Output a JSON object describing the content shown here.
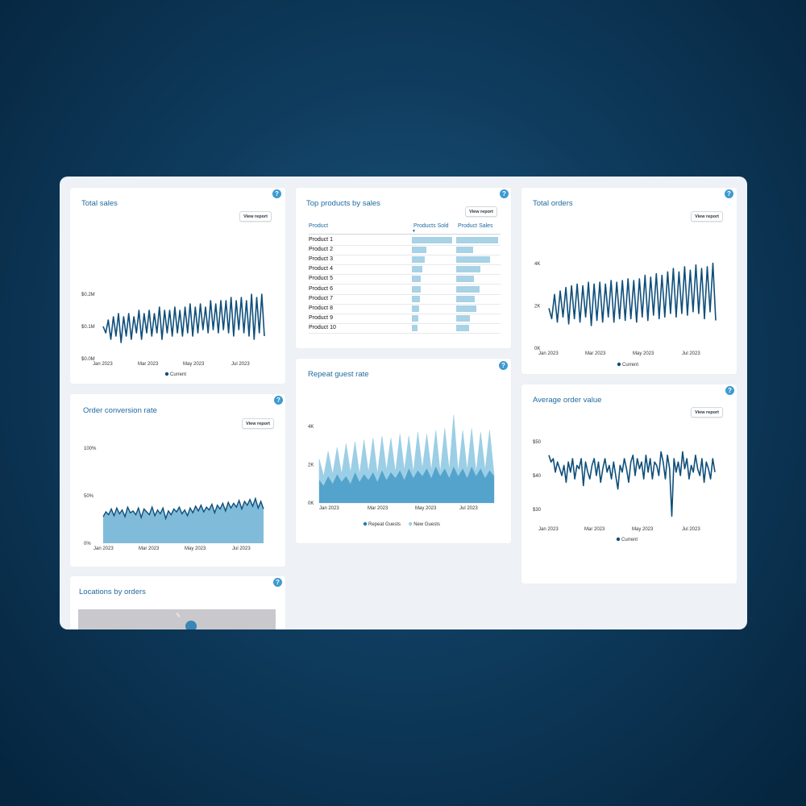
{
  "colors": {
    "accent": "#1f6aa0",
    "line": "#0f4f7a",
    "area": "#80bcd9",
    "bar": "#a8d2e6",
    "repeat": "#1a7fb8",
    "new": "#9ccfe6"
  },
  "common": {
    "view_report": "View report",
    "help": "?"
  },
  "total_sales": {
    "title": "Total sales",
    "legend": "Current",
    "chart_data": {
      "type": "line",
      "x_ticks": [
        "Jan 2023",
        "Mar 2023",
        "May 2023",
        "Jul 2023"
      ],
      "y_ticks": [
        "$0.0M",
        "$0.1M",
        "$0.2M"
      ],
      "ylim": [
        0,
        0.2
      ],
      "series": [
        {
          "name": "Current",
          "values": [
            0.1,
            0.08,
            0.12,
            0.06,
            0.13,
            0.07,
            0.14,
            0.05,
            0.13,
            0.07,
            0.14,
            0.06,
            0.13,
            0.08,
            0.15,
            0.06,
            0.14,
            0.08,
            0.15,
            0.07,
            0.14,
            0.08,
            0.16,
            0.06,
            0.15,
            0.08,
            0.15,
            0.07,
            0.16,
            0.08,
            0.15,
            0.07,
            0.16,
            0.08,
            0.17,
            0.07,
            0.16,
            0.08,
            0.17,
            0.09,
            0.16,
            0.08,
            0.18,
            0.09,
            0.17,
            0.08,
            0.18,
            0.09,
            0.18,
            0.08,
            0.19,
            0.07,
            0.18,
            0.09,
            0.19,
            0.08,
            0.18,
            0.07,
            0.2,
            0.06,
            0.19,
            0.08,
            0.2,
            0.07
          ]
        }
      ]
    }
  },
  "top_products": {
    "title": "Top products by sales",
    "col_product": "Product",
    "col_sold": "Products Sold",
    "col_sales": "Product Sales",
    "sort_indicator": "▼",
    "rows": [
      {
        "name": "Product 1",
        "sold": 1.0,
        "sales": 1.0
      },
      {
        "name": "Product 2",
        "sold": 0.35,
        "sales": 0.4
      },
      {
        "name": "Product 3",
        "sold": 0.32,
        "sales": 0.8
      },
      {
        "name": "Product 4",
        "sold": 0.25,
        "sales": 0.58
      },
      {
        "name": "Product 5",
        "sold": 0.22,
        "sales": 0.42
      },
      {
        "name": "Product 6",
        "sold": 0.22,
        "sales": 0.56
      },
      {
        "name": "Product 7",
        "sold": 0.2,
        "sales": 0.45
      },
      {
        "name": "Product 8",
        "sold": 0.18,
        "sales": 0.48
      },
      {
        "name": "Product 9",
        "sold": 0.16,
        "sales": 0.33
      },
      {
        "name": "Product 10",
        "sold": 0.13,
        "sales": 0.31
      }
    ]
  },
  "total_orders": {
    "title": "Total orders",
    "legend": "Current",
    "chart_data": {
      "type": "line",
      "x_ticks": [
        "Jan 2023",
        "Mar 2023",
        "May 2023",
        "Jul 2023"
      ],
      "y_ticks": [
        "0K",
        "2K",
        "4K"
      ],
      "ylim": [
        0,
        4000
      ],
      "series": [
        {
          "name": "Current",
          "values": [
            2300,
            1700,
            3100,
            1500,
            3300,
            1800,
            3500,
            1400,
            3600,
            1700,
            3700,
            1500,
            3600,
            1800,
            3800,
            1300,
            3700,
            1600,
            3800,
            1500,
            3700,
            1800,
            3900,
            1500,
            3800,
            1700,
            3900,
            1600,
            4000,
            1700,
            3900,
            1500,
            4000,
            1800,
            4200,
            1600,
            4100,
            1900,
            4300,
            1700,
            4200,
            1800,
            4400,
            2000,
            4600,
            1800,
            4400,
            2000,
            4700,
            1900,
            4500,
            2100,
            4800,
            2000,
            4600,
            1700,
            4700,
            2100,
            4900,
            1600
          ]
        }
      ]
    }
  },
  "order_conversion": {
    "title": "Order conversion rate",
    "chart_data": {
      "type": "area",
      "x_ticks": [
        "Jan 2023",
        "Mar 2023",
        "May 2023",
        "Jul 2023"
      ],
      "y_ticks": [
        "0%",
        "50%",
        "100%"
      ],
      "ylim": [
        0,
        100
      ],
      "series": [
        {
          "name": "",
          "values": [
            28,
            33,
            30,
            36,
            29,
            37,
            31,
            35,
            28,
            38,
            32,
            34,
            30,
            37,
            27,
            36,
            33,
            30,
            38,
            29,
            35,
            31,
            37,
            26,
            34,
            30,
            36,
            33,
            38,
            31,
            35,
            29,
            37,
            32,
            39,
            34,
            40,
            33,
            38,
            35,
            41,
            32,
            40,
            36,
            42,
            34,
            43,
            37,
            42,
            38,
            45,
            36,
            44,
            40,
            46,
            39,
            47,
            37,
            44,
            36
          ]
        }
      ]
    }
  },
  "repeat_guest": {
    "title": "Repeat guest rate",
    "legend_repeat": "Repeat Guests",
    "legend_new": "New Guests",
    "chart_data": {
      "type": "area",
      "x_ticks": [
        "Jan 2023",
        "Mar 2023",
        "May 2023",
        "Jul 2023"
      ],
      "y_ticks": [
        "0K",
        "2K",
        "4K"
      ],
      "ylim": [
        0,
        4000
      ],
      "series": [
        {
          "name": "Repeat Guests",
          "values": [
            1200,
            900,
            1400,
            1000,
            1500,
            1100,
            1400,
            1000,
            1600,
            1100,
            1500,
            1200,
            1600,
            1100,
            1700,
            1200,
            1600,
            1300,
            1700,
            1200,
            1800,
            1300,
            1700,
            1400,
            1800,
            1300,
            1900,
            1400,
            1800,
            1300,
            1900,
            1400,
            1800,
            1300,
            1900,
            1400,
            1800,
            1300,
            1700,
            1400
          ]
        },
        {
          "name": "New Guests",
          "values": [
            2300,
            1400,
            2700,
            1500,
            2900,
            1500,
            3100,
            1600,
            3200,
            1500,
            3300,
            1600,
            3400,
            1500,
            3500,
            1700,
            3400,
            1600,
            3600,
            1700,
            3500,
            1600,
            3700,
            1800,
            3600,
            1700,
            3800,
            1600,
            3900,
            1700,
            4600,
            1600,
            3800,
            1700,
            3900,
            1600,
            3700,
            1700,
            3800,
            1500
          ]
        }
      ]
    }
  },
  "avg_order_value": {
    "title": "Average order value",
    "legend": "Current",
    "chart_data": {
      "type": "line",
      "x_ticks": [
        "Jan 2023",
        "Mar 2023",
        "May 2023",
        "Jul 2023"
      ],
      "y_ticks": [
        "$30",
        "$40",
        "$50"
      ],
      "ylim": [
        30,
        50
      ],
      "series": [
        {
          "name": "Current",
          "values": [
            46,
            44,
            45,
            41,
            44,
            42,
            40,
            43,
            38,
            44,
            41,
            45,
            39,
            43,
            42,
            45,
            37,
            44,
            41,
            39,
            43,
            45,
            40,
            44,
            38,
            42,
            45,
            41,
            43,
            39,
            44,
            40,
            36,
            43,
            41,
            45,
            42,
            38,
            44,
            46,
            40,
            45,
            42,
            44,
            39,
            46,
            41,
            45,
            39,
            44,
            43,
            40,
            47,
            44,
            39,
            46,
            42,
            28,
            45,
            41,
            44,
            40,
            47,
            42,
            45,
            39,
            43,
            41,
            46,
            42,
            40,
            45,
            38,
            44,
            42,
            39,
            45,
            41
          ]
        }
      ]
    }
  },
  "locations": {
    "title": "Locations by orders"
  }
}
